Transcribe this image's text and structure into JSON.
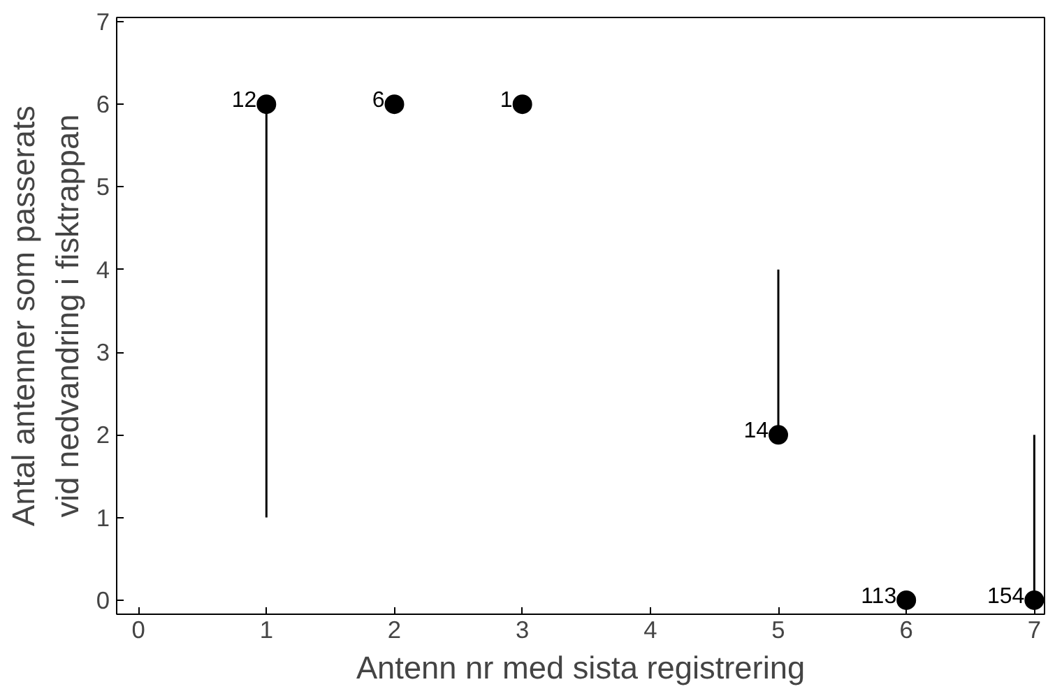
{
  "chart_data": {
    "type": "scatter",
    "xlabel": "Antenn nr med sista registrering",
    "ylabel": "Antal antenner som passerats\nvid nedvandring i fisktrappan",
    "x": [
      1,
      2,
      3,
      5,
      6,
      7
    ],
    "values": [
      6,
      6,
      6,
      2,
      0,
      0
    ],
    "errors": [
      [
        1,
        6
      ],
      null,
      null,
      [
        2,
        4
      ],
      null,
      [
        0,
        2
      ]
    ],
    "annotations": [
      {
        "text": "12",
        "x": 1,
        "y": 6
      },
      {
        "text": "6",
        "x": 2,
        "y": 6
      },
      {
        "text": "1",
        "x": 3,
        "y": 6
      },
      {
        "text": "14",
        "x": 5,
        "y": 2
      },
      {
        "text": "113",
        "x": 6,
        "y": 0
      },
      {
        "text": "154",
        "x": 7,
        "y": 0
      }
    ],
    "color": "#000000",
    "marker": "circle",
    "grid": false,
    "xlim": [
      -0.17,
      7.08
    ],
    "ylim": [
      -0.17,
      7.05
    ],
    "xticks": [
      0,
      1,
      2,
      3,
      4,
      5,
      6,
      7
    ],
    "yticks": [
      0,
      1,
      2,
      3,
      4,
      5,
      6,
      7
    ]
  }
}
